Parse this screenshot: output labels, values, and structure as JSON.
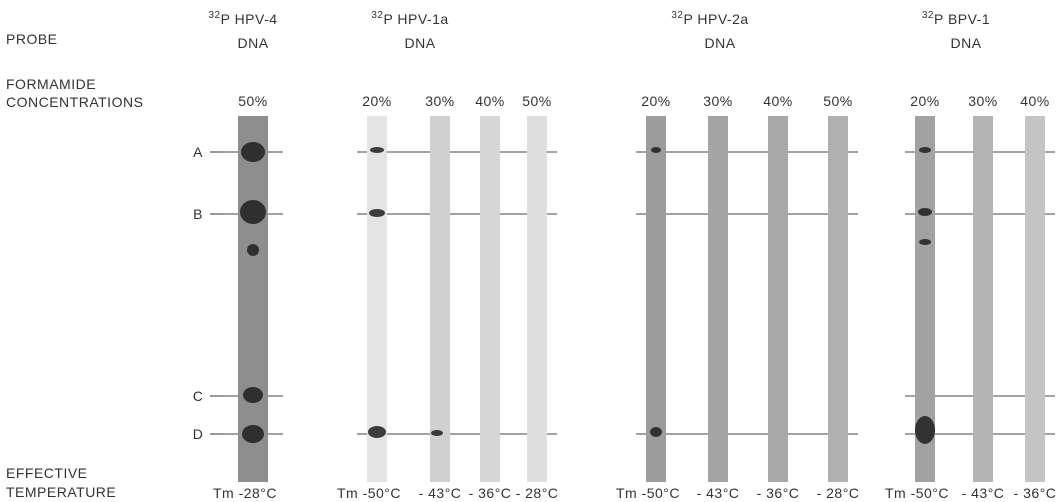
{
  "row_labels": {
    "probe": "PROBE",
    "formamide": [
      "FORMAMIDE",
      "CONCENTRATIONS"
    ],
    "temperature": [
      "EFFECTIVE",
      "TEMPERATURE"
    ]
  },
  "band_labels": [
    "A",
    "B",
    "C",
    "D"
  ],
  "groups": [
    {
      "isotope": "32",
      "probe": "P HPV-4",
      "molecule": "DNA",
      "lanes": [
        {
          "concentration": "50%",
          "temperature": "Tm -28°C"
        }
      ]
    },
    {
      "isotope": "32",
      "probe": "P HPV-1a",
      "molecule": "DNA",
      "lanes": [
        {
          "concentration": "20%",
          "temperature": "Tm -50°C"
        },
        {
          "concentration": "30%",
          "temperature": "- 43°C"
        },
        {
          "concentration": "40%",
          "temperature": "- 36°C"
        },
        {
          "concentration": "50%",
          "temperature": "- 28°C"
        }
      ]
    },
    {
      "isotope": "32",
      "probe": "P HPV-2a",
      "molecule": "DNA",
      "lanes": [
        {
          "concentration": "20%",
          "temperature": "Tm -50°C"
        },
        {
          "concentration": "30%",
          "temperature": "- 43°C"
        },
        {
          "concentration": "40%",
          "temperature": "- 36°C"
        },
        {
          "concentration": "50%",
          "temperature": "- 28°C"
        }
      ]
    },
    {
      "isotope": "32",
      "probe": "P BPV-1",
      "molecule": "DNA",
      "lanes": [
        {
          "concentration": "20%",
          "temperature": "Tm -50°C"
        },
        {
          "concentration": "30%",
          "temperature": "- 43°C"
        },
        {
          "concentration": "40%",
          "temperature": "- 36°C"
        }
      ]
    }
  ]
}
